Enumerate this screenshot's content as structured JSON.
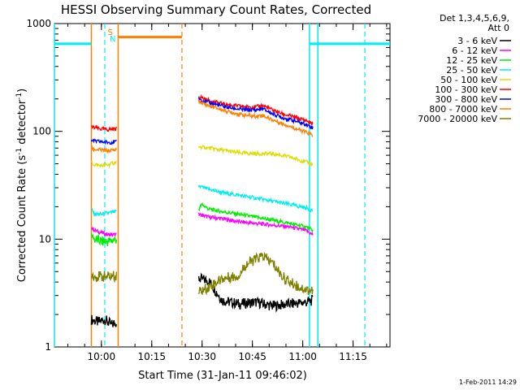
{
  "chart_data": {
    "type": "line",
    "title": "HESSI Observing Summary Count Rates, Corrected",
    "xlabel": "Start Time (31-Jan-11 09:46:02)",
    "ylabel_main": "Corrected Count Rate (s",
    "ylabel_sup1": "-1",
    "ylabel_mid": " detector",
    "ylabel_sup2": "-1",
    "ylabel_end": ")",
    "yscale": "log",
    "ylim": [
      1,
      1000
    ],
    "xlim_minutes_after_0946": [
      0,
      100
    ],
    "x_ticks": [
      {
        "label": "10:00",
        "minutes": 14
      },
      {
        "label": "10:15",
        "minutes": 29
      },
      {
        "label": "10:30",
        "minutes": 44
      },
      {
        "label": "10:45",
        "minutes": 59
      },
      {
        "label": "11:00",
        "minutes": 74
      },
      {
        "label": "11:15",
        "minutes": 89
      }
    ],
    "y_ticks": [
      {
        "label": "1",
        "value": 1
      },
      {
        "label": "10",
        "value": 10
      },
      {
        "label": "100",
        "value": 100
      },
      {
        "label": "1000",
        "value": 1000
      }
    ],
    "legend_header": [
      "Det 1,3,4,5,6,9,",
      "Att 0"
    ],
    "legend_placement": "right",
    "series": [
      {
        "name": "3 - 6 keV",
        "color": "#000000",
        "segments": [
          {
            "x": [
              11,
              13,
              15,
              17,
              18.5
            ],
            "y": [
              1.8,
              1.7,
              1.8,
              1.6,
              1.7
            ]
          },
          {
            "x": [
              43,
              46,
              50,
              55,
              60,
              65,
              70,
              75,
              77
            ],
            "y": [
              4.3,
              4.1,
              2.7,
              2.5,
              2.6,
              2.4,
              2.5,
              2.6,
              2.7
            ]
          }
        ]
      },
      {
        "name": "6 - 12 keV",
        "color": "#ff00ff",
        "segments": [
          {
            "x": [
              11,
              12,
              14,
              16,
              18.5
            ],
            "y": [
              13,
              12,
              11.5,
              11,
              11
            ]
          },
          {
            "x": [
              43,
              46,
              50,
              55,
              60,
              65,
              70,
              75,
              77
            ],
            "y": [
              17,
              16,
              15.5,
              14.5,
              14,
              13.5,
              13,
              12,
              11
            ]
          }
        ]
      },
      {
        "name": "12 - 25 keV",
        "color": "#00ee00",
        "segments": [
          {
            "x": [
              11,
              12,
              14,
              16,
              18.5
            ],
            "y": [
              11,
              10,
              9.5,
              9.5,
              10
            ]
          },
          {
            "x": [
              43,
              44,
              46,
              50,
              55,
              60,
              65,
              70,
              75,
              77
            ],
            "y": [
              19,
              21,
              19,
              18,
              17,
              16,
              15,
              14,
              13,
              12
            ]
          }
        ]
      },
      {
        "name": "25 - 50 keV",
        "color": "#00eeee",
        "segments": [
          {
            "x": [
              11,
              12,
              14,
              16,
              18.5
            ],
            "y": [
              19,
              17,
              17,
              17.5,
              18
            ]
          },
          {
            "x": [
              43,
              46,
              50,
              55,
              60,
              65,
              70,
              75,
              77
            ],
            "y": [
              31,
              29,
              27,
              25.5,
              24,
              22.5,
              21,
              19.5,
              18.5
            ]
          }
        ]
      },
      {
        "name": "50 - 100 keV",
        "color": "#dddd00",
        "segments": [
          {
            "x": [
              11,
              12,
              14,
              16,
              18.5
            ],
            "y": [
              51,
              49,
              48,
              49,
              52
            ]
          },
          {
            "x": [
              43,
              46,
              50,
              55,
              60,
              65,
              70,
              75,
              77
            ],
            "y": [
              72,
              70,
              67,
              63,
              62,
              62,
              58,
              52,
              49
            ]
          }
        ]
      },
      {
        "name": "100 - 300 keV",
        "color": "#ff0000",
        "segments": [
          {
            "x": [
              11,
              12,
              14,
              16,
              18.5
            ],
            "y": [
              110,
              108,
              105,
              104,
              106
            ]
          },
          {
            "x": [
              43,
              45,
              48,
              52,
              56,
              60,
              62,
              65,
              68,
              72,
              75,
              77
            ],
            "y": [
              212,
              198,
              186,
              176,
              170,
              168,
              174,
              158,
              145,
              134,
              126,
              117
            ]
          }
        ]
      },
      {
        "name": "300 - 800 keV",
        "color": "#0000ff",
        "segments": [
          {
            "x": [
              11,
              12,
              14,
              16,
              18.5
            ],
            "y": [
              84,
              81,
              80,
              79,
              80
            ]
          },
          {
            "x": [
              43,
              45,
              48,
              52,
              56,
              60,
              62,
              65,
              68,
              72,
              75,
              77
            ],
            "y": [
              202,
              189,
              178,
              166,
              159,
              158,
              162,
              146,
              134,
              124,
              116,
              108
            ]
          }
        ]
      },
      {
        "name": "800 - 7000 keV",
        "color": "#ff7f00",
        "segments": [
          {
            "x": [
              11,
              12,
              14,
              16,
              18.5
            ],
            "y": [
              70,
              68,
              67,
              66,
              68
            ]
          },
          {
            "x": [
              43,
              45,
              48,
              52,
              56,
              60,
              62,
              65,
              68,
              72,
              75,
              77
            ],
            "y": [
              190,
              177,
              165,
              152,
              142,
              138,
              141,
              128,
              118,
              106,
              98,
              92
            ]
          }
        ]
      },
      {
        "name": "7000 - 20000 keV",
        "color": "#808000",
        "segments": [
          {
            "x": [
              11,
              12,
              14,
              16,
              18.5
            ],
            "y": [
              4.8,
              4.5,
              4.5,
              4.5,
              4.6
            ]
          },
          {
            "x": [
              43,
              46,
              50,
              55,
              57,
              60,
              62,
              65,
              68,
              70,
              73,
              75,
              77
            ],
            "y": [
              3.2,
              3.6,
              4.3,
              4.6,
              5.8,
              6.5,
              7.0,
              6.0,
              4.5,
              4.0,
              3.6,
              3.4,
              3.3
            ]
          }
        ]
      }
    ],
    "annotations": {
      "night_label": "N",
      "saa_label": "S",
      "night_bars": [
        {
          "x0": 0,
          "x1": 11,
          "y": 650,
          "color": "#00eeee"
        },
        {
          "x0": 76,
          "x1": 100,
          "y": 650,
          "color": "#00eeee"
        }
      ],
      "saa_bar": {
        "x0": 19,
        "x1": 38,
        "y": 750,
        "color": "#ff7f00"
      },
      "solid_lines": [
        {
          "x": 0,
          "color": "#00eeee"
        },
        {
          "x": 11,
          "color": "#ff7f00"
        },
        {
          "x": 19,
          "color": "#ff7f00"
        },
        {
          "x": 76,
          "color": "#00eeee"
        },
        {
          "x": 78.5,
          "color": "#00eeee"
        }
      ],
      "dashed_lines": [
        {
          "x": 15,
          "color": "#00eeee"
        },
        {
          "x": 38,
          "color": "#ff7f00"
        },
        {
          "x": 92.5,
          "color": "#00eeee"
        }
      ]
    }
  },
  "footer_date": "1-Feb-2011 14:29"
}
